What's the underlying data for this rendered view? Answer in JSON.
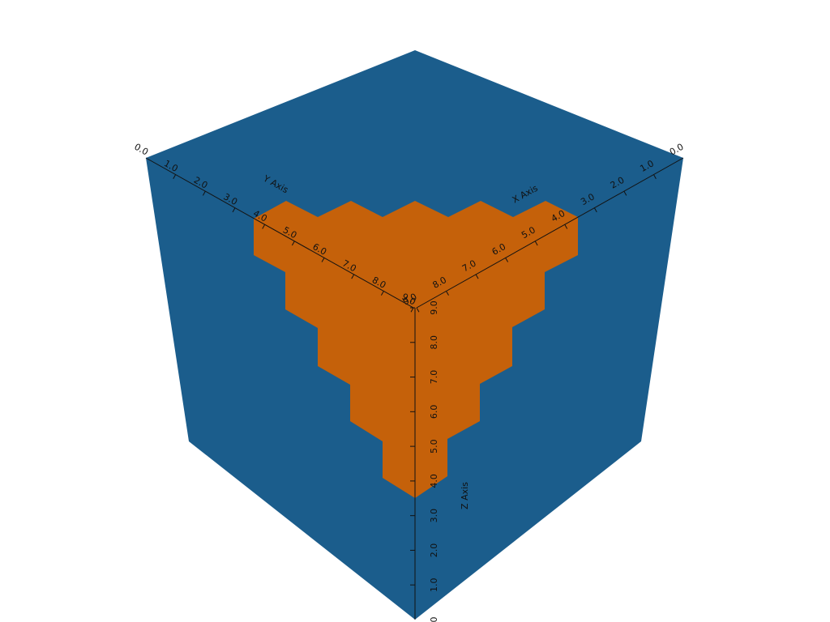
{
  "colors": {
    "background": "#ffffff",
    "cube_face": "#1b5d8c",
    "highlight": "#c5610a",
    "axis": "#111111"
  },
  "axes": {
    "x": {
      "title": "X Axis",
      "ticks": [
        {
          "value": 0,
          "label": "0.0"
        },
        {
          "value": 1,
          "label": "1.0"
        },
        {
          "value": 2,
          "label": "2.0"
        },
        {
          "value": 3,
          "label": "3.0"
        },
        {
          "value": 4,
          "label": "4.0"
        },
        {
          "value": 5,
          "label": "5.0"
        },
        {
          "value": 6,
          "label": "6.0"
        },
        {
          "value": 7,
          "label": "7.0"
        },
        {
          "value": 8,
          "label": "8.0"
        },
        {
          "value": 9,
          "label": "9.0"
        }
      ]
    },
    "y": {
      "title": "Y Axis",
      "ticks": [
        {
          "value": 0,
          "label": "0.0"
        },
        {
          "value": 1,
          "label": "1.0"
        },
        {
          "value": 2,
          "label": "2.0"
        },
        {
          "value": 3,
          "label": "3.0"
        },
        {
          "value": 4,
          "label": "4.0"
        },
        {
          "value": 5,
          "label": "5.0"
        },
        {
          "value": 6,
          "label": "6.0"
        },
        {
          "value": 7,
          "label": "7.0"
        },
        {
          "value": 8,
          "label": "8.0"
        },
        {
          "value": 9,
          "label": "9.0"
        }
      ]
    },
    "z": {
      "title": "Z Axis",
      "ticks": [
        {
          "value": 0,
          "label": "0"
        },
        {
          "value": 1,
          "label": "1.0"
        },
        {
          "value": 2,
          "label": "2.0"
        },
        {
          "value": 3,
          "label": "3.0"
        },
        {
          "value": 4,
          "label": "4.0"
        },
        {
          "value": 5,
          "label": "5.0"
        },
        {
          "value": 6,
          "label": "6.0"
        },
        {
          "value": 7,
          "label": "7.0"
        },
        {
          "value": 8,
          "label": "8.0"
        },
        {
          "value": 9,
          "label": "9.0"
        }
      ]
    }
  }
}
